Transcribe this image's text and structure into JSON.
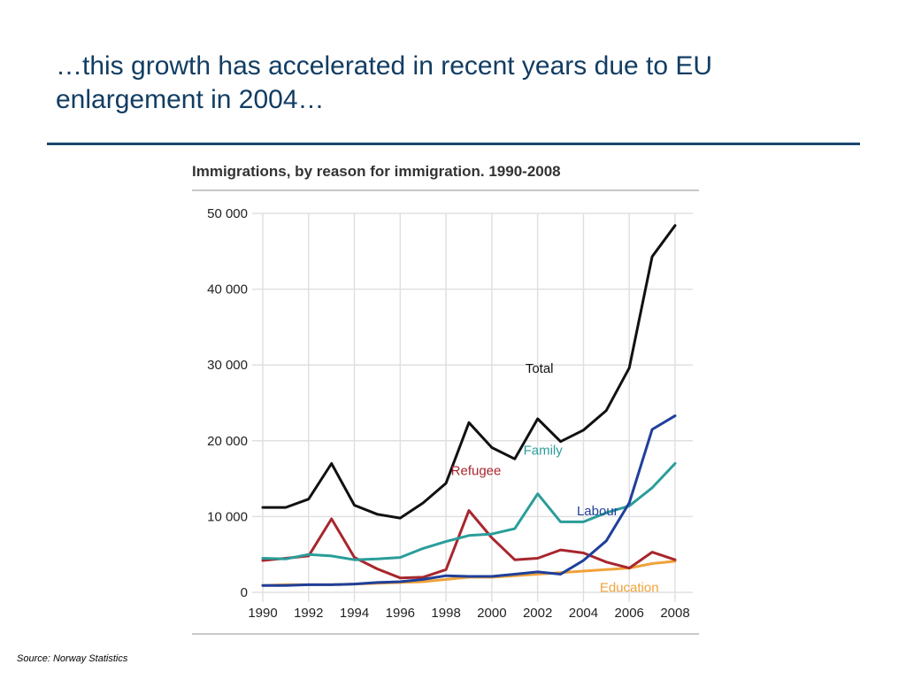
{
  "slide": {
    "title": "…this growth has accelerated in recent years due to EU enlargement in 2004…",
    "source": "Source: Norway Statistics"
  },
  "chart_data": {
    "type": "line",
    "title": "Immigrations, by reason for immigration. 1990-2008",
    "xlabel": "",
    "ylabel": "",
    "x": [
      1990,
      1991,
      1992,
      1993,
      1994,
      1995,
      1996,
      1997,
      1998,
      1999,
      2000,
      2001,
      2002,
      2003,
      2004,
      2005,
      2006,
      2007,
      2008
    ],
    "x_tick_labels": [
      "1990",
      "1992",
      "1994",
      "1996",
      "1998",
      "2000",
      "2002",
      "2004",
      "2006",
      "2008"
    ],
    "y_tick_values": [
      0,
      10000,
      20000,
      30000,
      40000,
      50000
    ],
    "y_tick_labels": [
      "0",
      "10 000",
      "20 000",
      "30 000",
      "40 000",
      "50 000"
    ],
    "ylim": [
      0,
      50000
    ],
    "grid": true,
    "legend": "inline labels",
    "series": [
      {
        "name": "Total",
        "color": "#111111",
        "values": [
          11200,
          11200,
          12300,
          17000,
          11500,
          10300,
          9800,
          11800,
          14400,
          22400,
          19100,
          17600,
          22900,
          19900,
          21400,
          24000,
          29600,
          44300,
          48400
        ]
      },
      {
        "name": "Labour",
        "color": "#1f3f9a",
        "values": [
          900,
          900,
          1000,
          1000,
          1100,
          1300,
          1400,
          1700,
          2200,
          2100,
          2100,
          2400,
          2700,
          2400,
          4200,
          6800,
          11800,
          21500,
          23300
        ]
      },
      {
        "name": "Family",
        "color": "#2a9d9a",
        "values": [
          4500,
          4400,
          5000,
          4800,
          4300,
          4400,
          4600,
          5800,
          6700,
          7500,
          7700,
          8400,
          13000,
          9300,
          9300,
          10500,
          11400,
          13800,
          17000
        ]
      },
      {
        "name": "Refugee",
        "color": "#a8262d",
        "values": [
          4200,
          4500,
          4800,
          9700,
          4600,
          3100,
          1900,
          2000,
          3000,
          10800,
          7200,
          4300,
          4500,
          5600,
          5200,
          4000,
          3200,
          5300,
          4300
        ]
      },
      {
        "name": "Education",
        "color": "#f0a23a",
        "values": [
          900,
          1000,
          1000,
          1000,
          1100,
          1200,
          1300,
          1400,
          1700,
          2000,
          2000,
          2200,
          2400,
          2600,
          2800,
          3000,
          3200,
          3800,
          4100
        ]
      }
    ]
  }
}
